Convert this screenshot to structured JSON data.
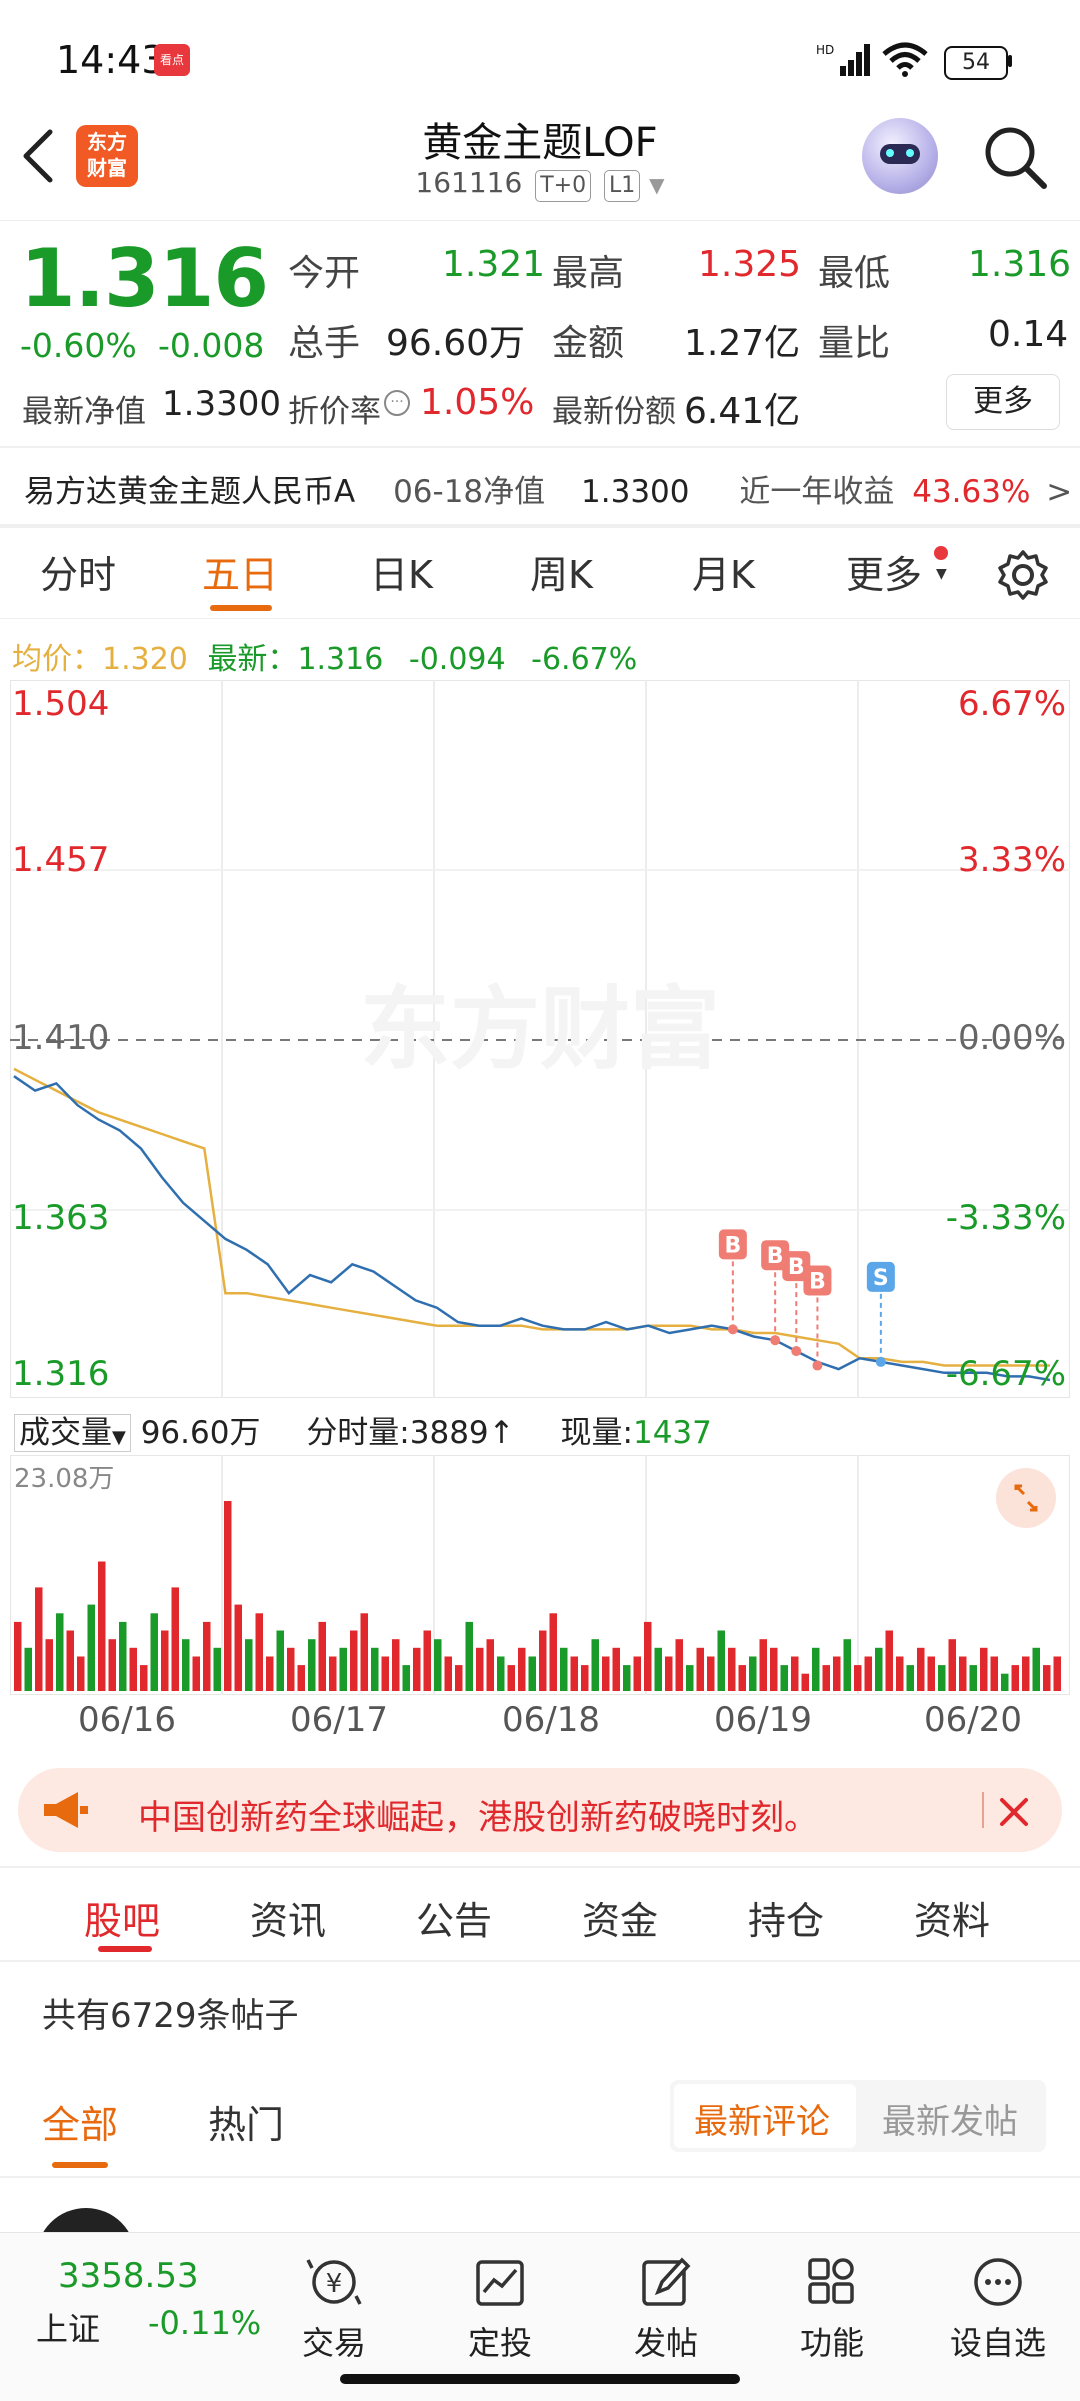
{
  "status_bar": {
    "time": "14:43",
    "badge": "看点",
    "battery": "54"
  },
  "header": {
    "title": "黄金主题LOF",
    "code": "161116",
    "tag1": "T+0",
    "tag2": "L1",
    "logo_line1": "东方",
    "logo_line2": "财富"
  },
  "quote": {
    "price": "1.316",
    "change_pct": "-0.60%",
    "change": "-0.008",
    "open_label": "今开",
    "open": "1.321",
    "high_label": "最高",
    "high": "1.325",
    "low_label": "最低",
    "low": "1.316",
    "vol_label": "总手",
    "vol": "96.60万",
    "amount_label": "金额",
    "amount": "1.27亿",
    "ratio_label": "量比",
    "ratio": "0.14",
    "nav_label": "最新净值",
    "nav": "1.3300",
    "discount_label": "折价率",
    "discount": "1.05%",
    "share_label": "最新份额",
    "share": "6.41亿",
    "more": "更多"
  },
  "fund": {
    "name": "易方达黄金主题人民币A",
    "nav_date_label": "06-18净值",
    "nav": "1.3300",
    "yr_label": "近一年收益",
    "yr": "43.63%",
    "arrow": ">"
  },
  "chart_tabs": [
    "分时",
    "五日",
    "日K",
    "周K",
    "月K",
    "更多"
  ],
  "chart_info": {
    "avg_label": "均价：",
    "avg": "1.320",
    "latest_label": "最新：",
    "latest": "1.316",
    "chg": "-0.094",
    "chg_pct": "-6.67%"
  },
  "chart_data": {
    "type": "line",
    "y_ticks": [
      "1.504",
      "1.457",
      "1.410",
      "1.363",
      "1.316"
    ],
    "pct_ticks": [
      "6.67%",
      "3.33%",
      "0.00%",
      "-3.33%",
      "-6.67%"
    ],
    "ylim": [
      1.316,
      1.504
    ],
    "x_labels": [
      "06/16",
      "06/17",
      "06/18",
      "06/19",
      "06/20"
    ],
    "watermark": "东方财富",
    "series": [
      {
        "values": [
          1.4,
          1.396,
          1.398,
          1.392,
          1.388,
          1.385,
          1.38,
          1.372,
          1.365,
          1.36,
          1.355,
          1.352,
          1.348,
          1.34,
          1.345,
          1.343,
          1.348,
          1.346,
          1.342,
          1.338,
          1.336,
          1.332,
          1.331,
          1.331,
          1.333,
          1.331,
          1.33,
          1.33,
          1.332,
          1.33,
          1.331,
          1.329,
          1.33,
          1.331,
          1.33,
          1.328,
          1.327,
          1.324,
          1.321,
          1.319,
          1.322,
          1.321,
          1.32,
          1.319,
          1.318,
          1.318,
          1.318,
          1.317,
          1.317,
          1.316
        ]
      },
      {
        "values": [
          1.402,
          1.399,
          1.396,
          1.393,
          1.39,
          1.388,
          1.386,
          1.384,
          1.382,
          1.38,
          1.34,
          1.34,
          1.339,
          1.338,
          1.337,
          1.336,
          1.335,
          1.334,
          1.333,
          1.332,
          1.331,
          1.331,
          1.331,
          1.331,
          1.331,
          1.33,
          1.33,
          1.33,
          1.33,
          1.33,
          1.331,
          1.331,
          1.331,
          1.33,
          1.33,
          1.329,
          1.329,
          1.328,
          1.327,
          1.326,
          1.322,
          1.322,
          1.321,
          1.321,
          1.32,
          1.32,
          1.32,
          1.32,
          1.32,
          1.32
        ]
      }
    ],
    "markers": [
      {
        "label": "B",
        "index": 34,
        "value": 1.33
      },
      {
        "label": "B",
        "index": 36,
        "value": 1.327
      },
      {
        "label": "B",
        "index": 37,
        "value": 1.324
      },
      {
        "label": "B",
        "index": 38,
        "value": 1.32
      },
      {
        "label": "S",
        "index": 41,
        "value": 1.321
      }
    ],
    "colors": {
      "price": "#2f6fb0",
      "avg": "#e5b040",
      "up": "#e0282d",
      "down": "#1a9a28",
      "buy": "#f07d74",
      "sell": "#5aa6e8"
    }
  },
  "volume": {
    "label": "成交量",
    "total": "96.60万",
    "tick_label": "分时量:",
    "tick": "3889",
    "arrow": "↑",
    "now_label": "现量:",
    "now": "1437",
    "max": "23.08万",
    "bars": [
      8,
      5,
      12,
      6,
      9,
      7,
      4,
      10,
      15,
      6,
      8,
      5,
      3,
      9,
      7,
      12,
      6,
      4,
      8,
      5,
      22,
      10,
      6,
      9,
      4,
      7,
      5,
      3,
      6,
      8,
      4,
      5,
      7,
      9,
      5,
      4,
      6,
      3,
      5,
      7,
      6,
      4,
      3,
      8,
      5,
      6,
      4,
      3,
      5,
      4,
      7,
      9,
      5,
      4,
      3,
      6,
      4,
      5,
      3,
      4,
      8,
      5,
      4,
      6,
      3,
      5,
      4,
      7,
      5,
      3,
      4,
      6,
      5,
      3,
      4,
      2,
      5,
      3,
      4,
      6,
      3,
      4,
      5,
      7,
      4,
      3,
      5,
      4,
      3,
      6,
      4,
      3,
      5,
      4,
      2,
      3,
      4,
      5,
      3,
      4
    ]
  },
  "banner": {
    "text": "中国创新药全球崛起，港股创新药破晓时刻。"
  },
  "content_tabs": [
    "股吧",
    "资讯",
    "公告",
    "资金",
    "持仓",
    "资料"
  ],
  "posts_count": "共有6729条帖子",
  "sub_tabs": [
    "全部",
    "热门"
  ],
  "segment": [
    "最新评论",
    "最新发帖"
  ],
  "bottom": {
    "index_value": "3358.53",
    "index_name": "上证",
    "index_chg": "-0.11%",
    "items": [
      "交易",
      "定投",
      "发帖",
      "功能",
      "设自选"
    ]
  }
}
